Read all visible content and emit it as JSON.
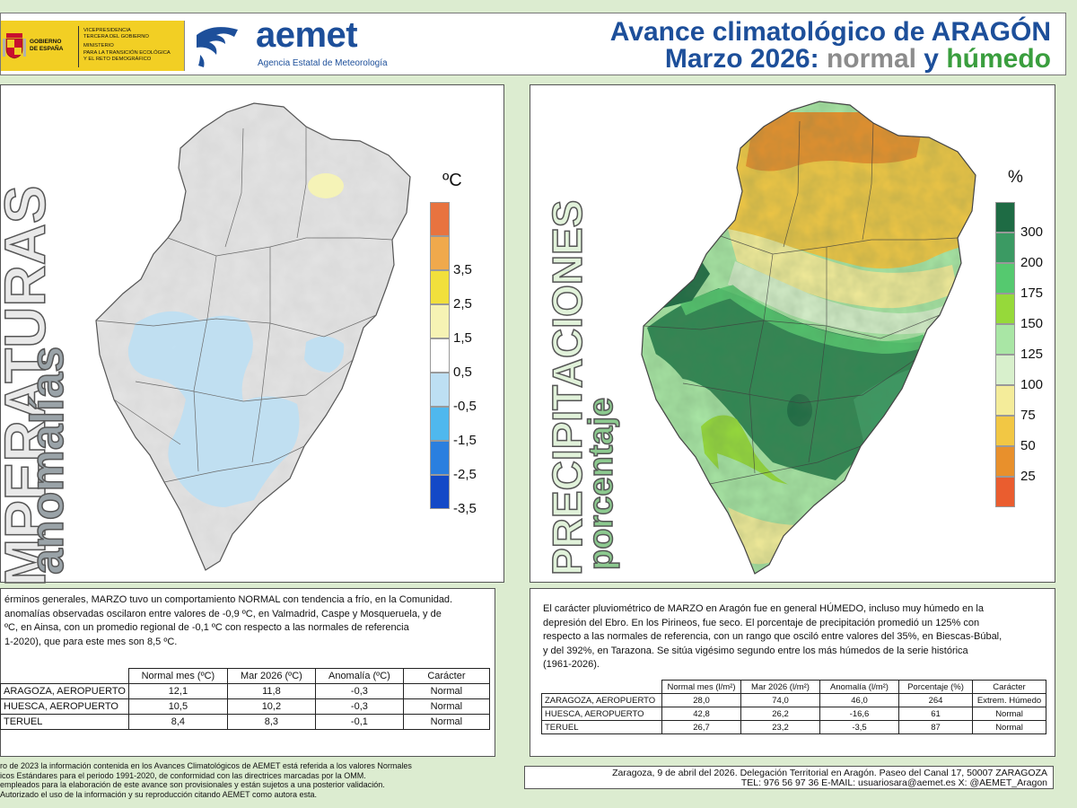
{
  "header": {
    "gov_left": [
      "GOBIERNO",
      "DE ESPAÑA"
    ],
    "gov_right": [
      "VICEPRESIDENCIA",
      "TERCERA DEL GOBIERNO",
      "MINISTERIO",
      "PARA LA TRANSICIÓN ECOLÓGICA",
      "Y EL RETO DEMOGRÁFICO"
    ],
    "aemet_word": "aemet",
    "aemet_sub": "Agencia Estatal de Meteorología",
    "title_prefix": "Avance climatológico de ",
    "title_region": "ARAGÓN",
    "title_month": "Marzo 2026: ",
    "title_normal": "normal",
    "title_y": " y ",
    "title_humedo": "húmedo"
  },
  "temperature_map": {
    "vertical_title": "TEMPERATURAS",
    "vertical_sub": "anomalías",
    "unit": "ºC",
    "legend": [
      {
        "label": "",
        "color": "#e8733f"
      },
      {
        "label": "3,5",
        "color": "#f0a94c"
      },
      {
        "label": "2,5",
        "color": "#f1e03c"
      },
      {
        "label": "1,5",
        "color": "#f6f3b4"
      },
      {
        "label": "0,5",
        "color": "#ffffff"
      },
      {
        "label": "-0,5",
        "color": "#bddff3"
      },
      {
        "label": "-1,5",
        "color": "#4fb8ee"
      },
      {
        "label": "-2,5",
        "color": "#2a7fdf"
      },
      {
        "label": "-3,5",
        "color": "#1349c7"
      }
    ]
  },
  "precipitation_map": {
    "vertical_title": "PRECIPITACIONES",
    "vertical_sub": "porcentaje",
    "unit": "%",
    "legend": [
      {
        "label": "300",
        "color": "#1e6b44"
      },
      {
        "label": "200",
        "color": "#3b9a63"
      },
      {
        "label": "175",
        "color": "#55c96f"
      },
      {
        "label": "150",
        "color": "#96d93a"
      },
      {
        "label": "125",
        "color": "#a9e6a5"
      },
      {
        "label": "100",
        "color": "#d8f0cc"
      },
      {
        "label": "75",
        "color": "#f4ec9a"
      },
      {
        "label": "50",
        "color": "#f2c744"
      },
      {
        "label": "25",
        "color": "#e8902c"
      },
      {
        "label": "",
        "color": "#ea5d2f"
      }
    ]
  },
  "temperature_text": {
    "lines": [
      "érminos generales, MARZO tuvo un comportamiento NORMAL con tendencia a frío, en la Comunidad.",
      "anomalías observadas oscilaron entre valores de -0,9 ºC, en Valmadrid, Caspe y Mosqueruela, y de",
      "ºC, en Ainsa, con un promedio regional de -0,1 ºC con respecto a las normales de referencia",
      "1-2020), que para este mes son 8,5 ºC."
    ],
    "table": {
      "headers": [
        "",
        "Normal mes (ºC)",
        "Mar 2026 (ºC)",
        "Anomalía (ºC)",
        "Carácter"
      ],
      "rows": [
        [
          "ARAGOZA, AEROPUERTO",
          "12,1",
          "11,8",
          "-0,3",
          "Normal"
        ],
        [
          "HUESCA, AEROPUERTO",
          "10,5",
          "10,2",
          "-0,3",
          "Normal"
        ],
        [
          "TERUEL",
          "8,4",
          "8,3",
          "-0,1",
          "Normal"
        ]
      ]
    }
  },
  "precipitation_text": {
    "lines": [
      "El carácter pluviométrico de MARZO en Aragón fue en general HÚMEDO, incluso muy húmedo en la",
      "depresión del Ebro. En los Pirineos, fue seco. El porcentaje de precipitación promedió un 125% con",
      "respecto a las normales de referencia, con un rango que osciló entre valores del 35%, en Biescas-Búbal,",
      "y del 392%, en Tarazona. Se sitúa vigésimo segundo entre los más húmedos de la serie histórica",
      "(1961-2026)."
    ],
    "table": {
      "headers": [
        "",
        "Normal mes (l/m²)",
        "Mar 2026 (l/m²)",
        "Anomalía (l/m²)",
        "Porcentaje (%)",
        "Carácter"
      ],
      "rows": [
        [
          "ZARAGOZA, AEROPUERTO",
          "28,0",
          "74,0",
          "46,0",
          "264",
          "Extrem. Húmedo"
        ],
        [
          "HUESCA, AEROPUERTO",
          "42,8",
          "26,2",
          "-16,6",
          "61",
          "Normal"
        ],
        [
          "TERUEL",
          "26,7",
          "23,2",
          "-3,5",
          "87",
          "Normal"
        ]
      ]
    }
  },
  "footer_left": [
    "ro de 2023 la información contenida en los Avances Climatológicos de AEMET está referida a los valores Normales",
    "icos Estándares para el periodo 1991-2020, de conformidad con las directrices marcadas por la OMM.",
    "empleados para la elaboración de este avance son provisionales y están sujetos a una posterior validación.",
    "Autorizado el uso de la información y su reproducción citando AEMET como autora esta."
  ],
  "footer_right": {
    "line1": "Zaragoza, 9 de abril del 2026. Delegación Territorial en Aragón. Paseo del Canal 17, 50007 ZARAGOZA",
    "line2": "TEL: 976 56 97 36 E-MAIL: usuariosara@aemet.es  X: @AEMET_Aragon"
  }
}
